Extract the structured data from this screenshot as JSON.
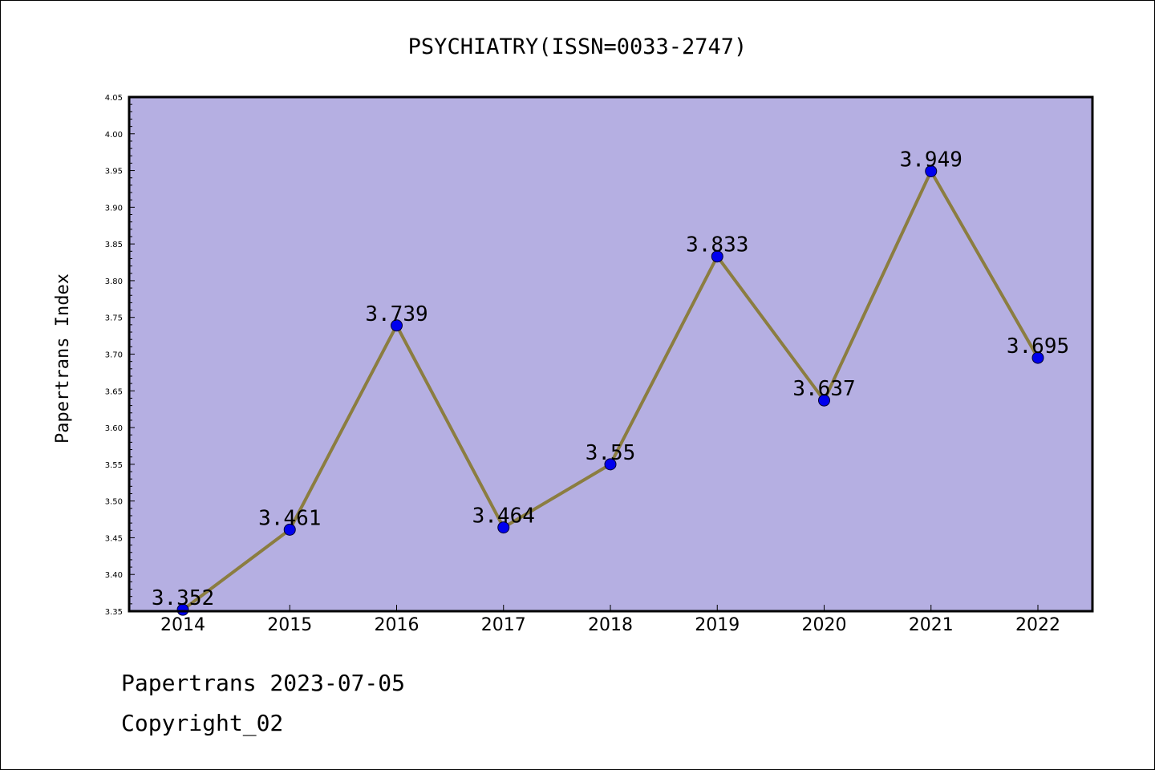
{
  "chart_data": {
    "type": "line",
    "title": "PSYCHIATRY(ISSN=0033-2747)",
    "ylabel": "Papertrans Index",
    "xlabel": "",
    "categories": [
      "2014",
      "2015",
      "2016",
      "2017",
      "2018",
      "2019",
      "2020",
      "2021",
      "2022"
    ],
    "series": [
      {
        "values": [
          3.352,
          3.461,
          3.739,
          3.464,
          3.55,
          3.833,
          3.637,
          3.949,
          3.695
        ],
        "labels": [
          "3.352",
          "3.461",
          "3.739",
          "3.464",
          "3.55",
          "3.833",
          "3.637",
          "3.949",
          "3.695"
        ]
      }
    ],
    "ylim": [
      3.35,
      4.05
    ],
    "yticks": [
      "3.35",
      "3.40",
      "3.45",
      "3.50",
      "3.55",
      "3.60",
      "3.65",
      "3.70",
      "3.75",
      "3.80",
      "3.85",
      "3.90",
      "3.95",
      "4.00",
      "4.05"
    ],
    "grid": false,
    "colors": {
      "plot_background": "#b5afe2",
      "line": "#8b7d40",
      "marker": "#0000ee"
    }
  },
  "footer": {
    "line1": "Papertrans 2023-07-05",
    "line2": "Copyright_02"
  }
}
